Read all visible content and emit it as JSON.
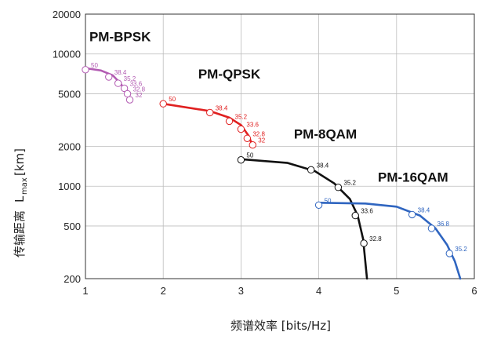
{
  "chart_data": {
    "type": "line",
    "title": "",
    "xlabel": "频谱效率 [bits/Hz]",
    "ylabel": "传输距离",
    "ylabel_unit_main": "L",
    "ylabel_unit_sub": "max",
    "ylabel_unit_bracket": "[km]",
    "xlim": [
      1,
      6
    ],
    "ylim": [
      200,
      20000
    ],
    "yscale": "log",
    "x_ticks": [
      "1",
      "2",
      "3",
      "4",
      "5",
      "6"
    ],
    "y_ticks": [
      "200",
      "500",
      "1000",
      "2000",
      "5000",
      "10000",
      "20000"
    ],
    "grid": true,
    "series": [
      {
        "name": "PM-BPSK",
        "color": "#b25bb2",
        "curve": [
          [
            1.0,
            7800
          ],
          [
            1.2,
            7500
          ],
          [
            1.35,
            6900
          ],
          [
            1.45,
            6000
          ],
          [
            1.52,
            5200
          ],
          [
            1.57,
            4600
          ]
        ],
        "points": [
          {
            "x": 1.0,
            "y": 7600,
            "label": "50"
          },
          {
            "x": 1.3,
            "y": 6700,
            "label": "38.4"
          },
          {
            "x": 1.42,
            "y": 6000,
            "label": "35.2"
          },
          {
            "x": 1.5,
            "y": 5500,
            "label": "33.6"
          },
          {
            "x": 1.54,
            "y": 5000,
            "label": "32.8"
          },
          {
            "x": 1.57,
            "y": 4500,
            "label": "32"
          }
        ]
      },
      {
        "name": "PM-QPSK",
        "color": "#e02020",
        "curve": [
          [
            2.0,
            4200
          ],
          [
            2.6,
            3700
          ],
          [
            2.85,
            3300
          ],
          [
            3.0,
            2900
          ],
          [
            3.1,
            2400
          ],
          [
            3.15,
            2000
          ]
        ],
        "points": [
          {
            "x": 2.0,
            "y": 4200,
            "label": "50"
          },
          {
            "x": 2.6,
            "y": 3600,
            "label": "38.4"
          },
          {
            "x": 2.85,
            "y": 3100,
            "label": "35.2"
          },
          {
            "x": 3.0,
            "y": 2700,
            "label": "33.6"
          },
          {
            "x": 3.08,
            "y": 2300,
            "label": "32.8"
          },
          {
            "x": 3.15,
            "y": 2050,
            "label": "32"
          }
        ]
      },
      {
        "name": "PM-8QAM",
        "color": "#111111",
        "curve": [
          [
            3.0,
            1600
          ],
          [
            3.6,
            1500
          ],
          [
            3.95,
            1300
          ],
          [
            4.2,
            1050
          ],
          [
            4.4,
            800
          ],
          [
            4.5,
            600
          ],
          [
            4.57,
            400
          ],
          [
            4.62,
            200
          ]
        ],
        "points": [
          {
            "x": 3.0,
            "y": 1580,
            "label": "50"
          },
          {
            "x": 3.9,
            "y": 1330,
            "label": "38.4"
          },
          {
            "x": 4.25,
            "y": 980,
            "label": "35.2"
          },
          {
            "x": 4.47,
            "y": 600,
            "label": "33.6"
          },
          {
            "x": 4.58,
            "y": 370,
            "label": "32.8"
          }
        ]
      },
      {
        "name": "PM-16QAM",
        "color": "#2f65c0",
        "curve": [
          [
            4.0,
            750
          ],
          [
            4.6,
            740
          ],
          [
            5.0,
            700
          ],
          [
            5.3,
            600
          ],
          [
            5.5,
            480
          ],
          [
            5.65,
            360
          ],
          [
            5.75,
            270
          ],
          [
            5.82,
            200
          ]
        ],
        "points": [
          {
            "x": 4.0,
            "y": 720,
            "label": "50"
          },
          {
            "x": 5.2,
            "y": 610,
            "label": "38.4"
          },
          {
            "x": 5.45,
            "y": 480,
            "label": "36.8"
          },
          {
            "x": 5.68,
            "y": 310,
            "label": "35.2"
          }
        ]
      }
    ]
  }
}
